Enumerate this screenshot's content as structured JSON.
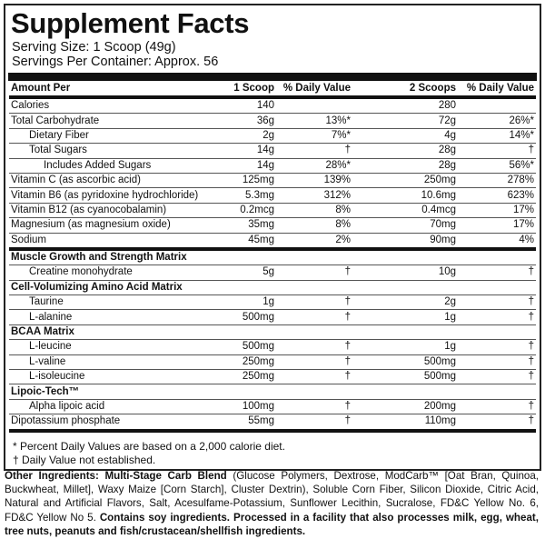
{
  "title": "Supplement Facts",
  "serving_size": "Serving Size: 1 Scoop (49g)",
  "servings_per_container": "Servings Per Container: Approx. 56",
  "header": [
    "Amount Per",
    "1 Scoop",
    "% Daily Value",
    "2 Scoops",
    "% Daily Value"
  ],
  "rows": [
    {
      "name": "Calories",
      "a": "140",
      "b": "",
      "c": "280",
      "d": ""
    },
    {
      "name": "Total Carbohydrate",
      "a": "36g",
      "b": "13%*",
      "c": "72g",
      "d": "26%*"
    },
    {
      "name": "Dietary Fiber",
      "indent": 1,
      "a": "2g",
      "b": "7%*",
      "c": "4g",
      "d": "14%*"
    },
    {
      "name": "Total Sugars",
      "indent": 1,
      "a": "14g",
      "b": "†",
      "c": "28g",
      "d": "†"
    },
    {
      "name": "Includes Added Sugars",
      "indent": 2,
      "a": "14g",
      "b": "28%*",
      "c": "28g",
      "d": "56%*"
    },
    {
      "name": "Vitamin C (as ascorbic acid)",
      "a": "125mg",
      "b": "139%",
      "c": "250mg",
      "d": "278%"
    },
    {
      "name": "Vitamin B6 (as pyridoxine hydrochloride)",
      "a": "5.3mg",
      "b": "312%",
      "c": "10.6mg",
      "d": "623%"
    },
    {
      "name": "Vitamin B12 (as cyanocobalamin)",
      "a": "0.2mcg",
      "b": "8%",
      "c": "0.4mcg",
      "d": "17%"
    },
    {
      "name": "Magnesium (as magnesium oxide)",
      "a": "35mg",
      "b": "8%",
      "c": "70mg",
      "d": "17%"
    },
    {
      "name": "Sodium",
      "a": "45mg",
      "b": "2%",
      "c": "90mg",
      "d": "4%",
      "thick": true
    },
    {
      "name": "Muscle Growth and Strength Matrix",
      "section": true
    },
    {
      "name": "Creatine monohydrate",
      "indent": 1,
      "a": "5g",
      "b": "†",
      "c": "10g",
      "d": "†"
    },
    {
      "name": "Cell-Volumizing Amino Acid Matrix",
      "section": true
    },
    {
      "name": "Taurine",
      "indent": 1,
      "a": "1g",
      "b": "†",
      "c": "2g",
      "d": "†"
    },
    {
      "name": "L-alanine",
      "indent": 1,
      "a": "500mg",
      "b": "†",
      "c": "1g",
      "d": "†"
    },
    {
      "name": "BCAA Matrix",
      "section": true
    },
    {
      "name": "L-leucine",
      "indent": 1,
      "a": "500mg",
      "b": "†",
      "c": "1g",
      "d": "†"
    },
    {
      "name": "L-valine",
      "indent": 1,
      "a": "250mg",
      "b": "†",
      "c": "500mg",
      "d": "†"
    },
    {
      "name": "L-isoleucine",
      "indent": 1,
      "a": "250mg",
      "b": "†",
      "c": "500mg",
      "d": "†"
    },
    {
      "name": "Lipoic-Tech™",
      "section": true
    },
    {
      "name": "Alpha lipoic acid",
      "indent": 1,
      "a": "100mg",
      "b": "†",
      "c": "200mg",
      "d": "†"
    },
    {
      "name": "Dipotassium phosphate",
      "a": "55mg",
      "b": "†",
      "c": "110mg",
      "d": "†",
      "thick": true
    }
  ],
  "footnotes": [
    "* Percent Daily Values are based on a 2,000 calorie diet.",
    "† Daily Value not established."
  ],
  "other_ingredients": {
    "label": "Other Ingredients: Multi-Stage Carb Blend",
    "text": " (Glucose Polymers, Dextrose, ModCarb™ [Oat Bran, Quinoa, Buckwheat, Millet], Waxy Maize [Corn Starch], Cluster Dextrin), Soluble Corn Fiber, Silicon Dioxide, Citric Acid, Natural and Artificial Flavors, Salt, Acesulfame-Potassium, Sunflower Lecithin, Sucralose, FD&C Yellow No. 6, FD&C Yellow No 5. ",
    "allergen": "Contains soy ingredients. Processed in a facility that also processes milk, egg, wheat, tree nuts, peanuts and fish/crustacean/shellfish ingredients."
  }
}
